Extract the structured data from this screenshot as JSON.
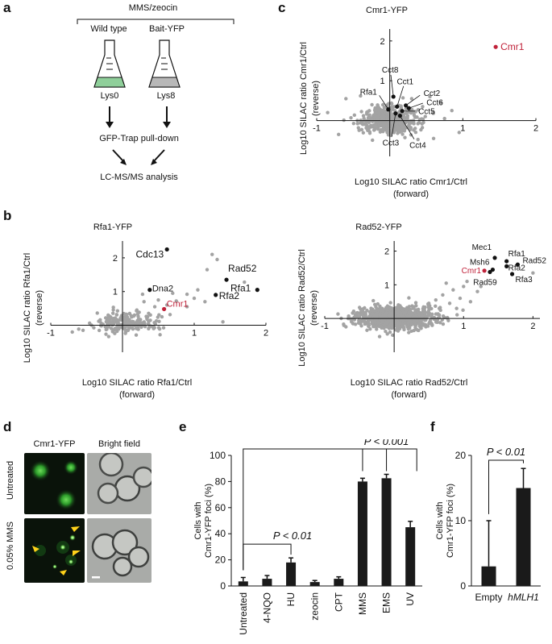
{
  "panels": {
    "a": "a",
    "b": "b",
    "c": "c",
    "d": "d",
    "e": "e",
    "f": "f"
  },
  "panel_a": {
    "treatment": "MMS/zeocin",
    "strain_left": "Wild type",
    "strain_right": "Bait-YFP",
    "medium_left": "Lys0",
    "medium_right": "Lys8",
    "step1": "GFP-Trap pull-down",
    "step2": "LC-MS/MS analysis",
    "colors": {
      "flask_left": "#8fcf9a",
      "flask_right": "#b8b8b8"
    }
  },
  "panel_b_rfa1": {
    "title": "Rfa1-YFP",
    "xlabel_line1": "Log10 SILAC ratio Rfa1/Ctrl",
    "xlabel_line2": "(forward)",
    "ylabel_line1": "Log10 SILAC ratio Rfa1/Ctrl",
    "ylabel_line2": "(reverse)",
    "xticks": [
      "-1",
      "1",
      "2"
    ],
    "yticks": [
      "1",
      "2"
    ]
  },
  "panel_b_rad52": {
    "title": "Rad52-YFP",
    "xlabel_line1": "Log10 SILAC ratio Rad52/Ctrl",
    "xlabel_line2": "(forward)",
    "ylabel_line1": "Log10 SILAC ratio Rad52/Ctrl",
    "ylabel_line2": "(reverse)",
    "xticks": [
      "-1",
      "1",
      "2"
    ],
    "yticks": [
      "1",
      "2"
    ]
  },
  "panel_c": {
    "title": "Cmr1-YFP",
    "xlabel_line1": "Log10 SILAC ratio Cmr1/Ctrl",
    "xlabel_line2": "(forward)",
    "ylabel_line1": "Log10 SILAC ratio Cmr1/Ctrl",
    "ylabel_line2": "(reverse)",
    "xticks": [
      "-1",
      "1",
      "2"
    ],
    "yticks": [
      "1",
      "2"
    ]
  },
  "panel_d": {
    "col1": "Cmr1-YFP",
    "col2": "Bright field",
    "row1": "Untreated",
    "row2": "0.05% MMS"
  },
  "panel_e": {
    "pval1": "P < 0.01",
    "pval2": "P < 0.001"
  },
  "panel_f": {
    "pval": "P < 0.01"
  },
  "chart_data": [
    {
      "type": "scatter",
      "title": "Rfa1-YFP",
      "xlabel": "Log10 SILAC ratio Rfa1/Ctrl (forward)",
      "ylabel": "Log10 SILAC ratio Rfa1/Ctrl (reverse)",
      "xlim": [
        -1.0,
        2.0
      ],
      "ylim": [
        -0.8,
        2.5
      ],
      "labeled_points": [
        {
          "name": "Cdc13",
          "x": 0.62,
          "y": 2.25,
          "color": "#111111"
        },
        {
          "name": "Rad52",
          "x": 1.45,
          "y": 1.35,
          "color": "#111111"
        },
        {
          "name": "Rfa1",
          "x": 1.88,
          "y": 1.05,
          "color": "#111111"
        },
        {
          "name": "Rfa2",
          "x": 1.3,
          "y": 0.9,
          "color": "#111111"
        },
        {
          "name": "Dna2",
          "x": 0.38,
          "y": 1.05,
          "color": "#111111"
        },
        {
          "name": "Cmr1",
          "x": 0.58,
          "y": 0.48,
          "color": "#c0223a"
        }
      ],
      "background_points": [
        {
          "x": 1.25,
          "y": 2.1
        },
        {
          "x": 1.32,
          "y": 1.95
        },
        {
          "x": 1.18,
          "y": 1.65
        },
        {
          "x": 1.7,
          "y": 1.28
        },
        {
          "x": 1.05,
          "y": 1.05
        },
        {
          "x": 0.9,
          "y": 0.92
        },
        {
          "x": 0.75,
          "y": 0.72
        },
        {
          "x": 0.7,
          "y": 0.95
        },
        {
          "x": 1.0,
          "y": 0.8
        },
        {
          "x": 0.62,
          "y": 0.6
        },
        {
          "x": 0.45,
          "y": 0.55
        },
        {
          "x": 0.3,
          "y": 0.7
        },
        {
          "x": 0.2,
          "y": 0.45
        },
        {
          "x": -0.2,
          "y": 0.3
        },
        {
          "x": 0.55,
          "y": 0.25
        },
        {
          "x": 0.9,
          "y": 0.55
        },
        {
          "x": 1.15,
          "y": 0.7
        },
        {
          "x": 0.28,
          "y": 0.92
        },
        {
          "x": -0.55,
          "y": -0.15
        },
        {
          "x": -0.7,
          "y": -0.2
        },
        {
          "x": 1.4,
          "y": 0.1
        },
        {
          "x": 0.1,
          "y": 0.35
        },
        {
          "x": 0.35,
          "y": 0.25
        },
        {
          "x": 0.5,
          "y": 0.75
        }
      ],
      "cluster": {
        "center": [
          0.05,
          0.05
        ],
        "spread": [
          0.22,
          0.16
        ],
        "n": 220
      }
    },
    {
      "type": "scatter",
      "title": "Rad52-YFP",
      "xlabel": "Log10 SILAC ratio Rad52/Ctrl (forward)",
      "ylabel": "Log10 SILAC ratio Rad52/Ctrl (reverse)",
      "xlim": [
        -1.0,
        2.1
      ],
      "ylim": [
        -1.0,
        2.3
      ],
      "labeled_points": [
        {
          "name": "Mec1",
          "x": 1.45,
          "y": 1.8,
          "color": "#111111"
        },
        {
          "name": "Rfa1",
          "x": 1.62,
          "y": 1.7,
          "color": "#111111"
        },
        {
          "name": "Rad52",
          "x": 1.78,
          "y": 1.6,
          "color": "#111111"
        },
        {
          "name": "Msh6",
          "x": 1.42,
          "y": 1.45,
          "color": "#111111"
        },
        {
          "name": "Rfa2",
          "x": 1.62,
          "y": 1.55,
          "color": "#111111"
        },
        {
          "name": "Cmr1",
          "x": 1.3,
          "y": 1.42,
          "color": "#c0223a"
        },
        {
          "name": "Rad59",
          "x": 1.38,
          "y": 1.38,
          "color": "#111111"
        },
        {
          "name": "Rfa3",
          "x": 1.7,
          "y": 1.32,
          "color": "#111111"
        }
      ],
      "background_points": [
        {
          "x": 2.0,
          "y": 1.35
        },
        {
          "x": 1.05,
          "y": 1.1
        },
        {
          "x": 1.0,
          "y": 0.95
        },
        {
          "x": 0.85,
          "y": 0.85
        },
        {
          "x": 1.2,
          "y": 0.8
        },
        {
          "x": 0.7,
          "y": 0.7
        },
        {
          "x": 0.95,
          "y": 0.6
        },
        {
          "x": 0.6,
          "y": 0.55
        },
        {
          "x": 0.8,
          "y": 0.45
        },
        {
          "x": 1.1,
          "y": 0.5
        },
        {
          "x": 0.5,
          "y": 0.45
        },
        {
          "x": 0.65,
          "y": 0.3
        },
        {
          "x": 1.25,
          "y": 0.95
        },
        {
          "x": 0.9,
          "y": 0.3
        },
        {
          "x": 0.75,
          "y": 1.05
        }
      ],
      "cluster": {
        "center": [
          0.0,
          0.02
        ],
        "spread": [
          0.28,
          0.16
        ],
        "n": 900
      }
    },
    {
      "type": "scatter",
      "title": "Cmr1-YFP",
      "xlabel": "Log10 SILAC ratio Cmr1/Ctrl (forward)",
      "ylabel": "Log10 SILAC ratio Cmr1/Ctrl (reverse)",
      "xlim": [
        -1.0,
        2.0
      ],
      "ylim": [
        -0.9,
        2.3
      ],
      "labeled_points": [
        {
          "name": "Cmr1",
          "x": 1.45,
          "y": 1.85,
          "color": "#c0223a"
        },
        {
          "name": "Cct8",
          "x": 0.05,
          "y": 0.6,
          "color": "#111111"
        },
        {
          "name": "Cct1",
          "x": 0.1,
          "y": 0.35,
          "color": "#111111"
        },
        {
          "name": "Cct2",
          "x": 0.22,
          "y": 0.38,
          "color": "#111111"
        },
        {
          "name": "Cct6",
          "x": 0.26,
          "y": 0.31,
          "color": "#111111"
        },
        {
          "name": "Cct5",
          "x": 0.17,
          "y": 0.24,
          "color": "#111111"
        },
        {
          "name": "Rfa1",
          "x": -0.02,
          "y": 0.28,
          "color": "#111111"
        },
        {
          "name": "Cct3",
          "x": 0.08,
          "y": 0.18,
          "color": "#111111"
        },
        {
          "name": "Cct4",
          "x": 0.14,
          "y": 0.12,
          "color": "#111111"
        }
      ],
      "background_points": [
        {
          "x": 0.85,
          "y": 0.25
        },
        {
          "x": 0.7,
          "y": 0.45
        },
        {
          "x": 0.55,
          "y": 0.6
        },
        {
          "x": 0.95,
          "y": -0.3
        },
        {
          "x": -0.85,
          "y": 0.2
        },
        {
          "x": -0.6,
          "y": 0.55
        },
        {
          "x": -0.4,
          "y": 0.62
        },
        {
          "x": 0.6,
          "y": -0.45
        },
        {
          "x": 0.45,
          "y": 0.35
        },
        {
          "x": 0.3,
          "y": 0.55
        },
        {
          "x": -0.7,
          "y": -0.35
        },
        {
          "x": 0.75,
          "y": 0.05
        }
      ],
      "cluster": {
        "center": [
          0.0,
          0.0
        ],
        "spread": [
          0.2,
          0.16
        ],
        "n": 500
      }
    },
    {
      "type": "bar",
      "title": "",
      "categories": [
        "Untreated",
        "4-NQO",
        "HU",
        "zeocin",
        "CPT",
        "MMS",
        "EMS",
        "UV"
      ],
      "values": [
        3.5,
        5.5,
        18,
        3,
        5.5,
        80,
        82.5,
        45
      ],
      "errors": [
        3,
        2.5,
        3.5,
        1.2,
        1.5,
        2.5,
        3,
        4.5
      ],
      "xlabel": "",
      "ylabel_line1": "Cells with",
      "ylabel_line2": "Cmr1-YFP foci (%)",
      "ylim": [
        0,
        100
      ],
      "yticks": [
        "0",
        "20",
        "40",
        "60",
        "80",
        "100"
      ]
    },
    {
      "type": "bar",
      "title": "",
      "categories": [
        "Empty",
        "hMLH1"
      ],
      "values": [
        3,
        15
      ],
      "errors": [
        7,
        3
      ],
      "xlabel": "",
      "ylabel_line1": "Cells with",
      "ylabel_line2": "Cmr1-YFP foci (%)",
      "ylim": [
        0,
        20
      ],
      "yticks": [
        "0",
        "10",
        "20"
      ]
    }
  ]
}
